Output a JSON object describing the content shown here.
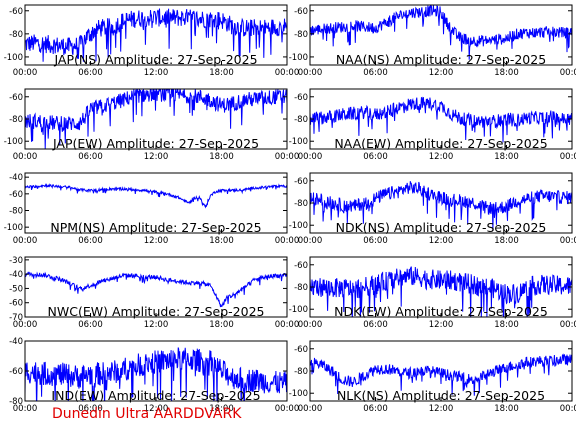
{
  "footer": "Dunedin Ultra AARDDVARK",
  "colors": {
    "trace": "#0000ff",
    "frame": "#000000",
    "footer": "#e00000",
    "background": "#ffffff"
  },
  "chart_data": [
    {
      "type": "line",
      "title": "JAP(NS) Amplitude: 27-Sep-2025",
      "xlabel": "",
      "ylabel": "",
      "xticks": [
        "00:00",
        "06:00",
        "12:00",
        "18:00",
        "00:00"
      ],
      "xlim": [
        0,
        24
      ],
      "ylim": [
        -107,
        -55
      ],
      "yticks": [
        -100,
        -80,
        -60
      ],
      "series": [
        {
          "x": [
            0,
            1,
            2,
            3,
            4,
            5,
            5.5,
            6,
            6.5,
            7,
            8,
            9,
            10,
            11,
            12,
            13,
            14,
            15,
            16,
            17,
            18,
            19,
            20,
            21,
            22,
            23,
            24
          ],
          "values": [
            -89,
            -88,
            -89,
            -90,
            -91,
            -90,
            -84,
            -80,
            -76,
            -75,
            -74,
            -69,
            -67,
            -66,
            -66,
            -66,
            -66,
            -66,
            -67,
            -67,
            -68,
            -73,
            -75,
            -75,
            -75,
            -74,
            -74
          ]
        }
      ],
      "noise": 8
    },
    {
      "type": "line",
      "title": "NAA(NS) Amplitude: 27-Sep-2025",
      "xlabel": "",
      "ylabel": "",
      "xticks": [
        "00:00",
        "06:00",
        "12:00",
        "18:00",
        "00:00"
      ],
      "xlim": [
        0,
        24
      ],
      "ylim": [
        -107,
        -55
      ],
      "yticks": [
        -100,
        -80,
        -60
      ],
      "series": [
        {
          "x": [
            0,
            1,
            2,
            3,
            4,
            5,
            6,
            7,
            8,
            9,
            10,
            11,
            12,
            12.5,
            13,
            13.5,
            14,
            15,
            16,
            17,
            18,
            19,
            20,
            21,
            22,
            23,
            24
          ],
          "values": [
            -77,
            -76,
            -75,
            -74,
            -73,
            -74,
            -75,
            -70,
            -65,
            -62,
            -61,
            -60,
            -61,
            -70,
            -76,
            -82,
            -84,
            -86,
            -86,
            -85,
            -84,
            -80,
            -79,
            -79,
            -78,
            -79,
            -79
          ]
        }
      ],
      "noise": 5
    },
    {
      "type": "line",
      "title": "JAP(EW) Amplitude: 27-Sep-2025",
      "xlabel": "",
      "ylabel": "",
      "xticks": [
        "00:00",
        "06:00",
        "12:00",
        "18:00",
        "00:00"
      ],
      "xlim": [
        0,
        24
      ],
      "ylim": [
        -107,
        -53
      ],
      "yticks": [
        -100,
        -80,
        -60
      ],
      "series": [
        {
          "x": [
            0,
            1,
            2,
            3,
            4,
            5,
            5.5,
            6,
            7,
            8,
            9,
            10,
            11,
            12,
            13,
            14,
            15,
            16,
            17,
            18,
            19,
            20,
            21,
            22,
            23,
            24
          ],
          "values": [
            -82,
            -82,
            -83,
            -84,
            -84,
            -84,
            -78,
            -71,
            -69,
            -66,
            -63,
            -59,
            -58,
            -57,
            -58,
            -58,
            -59,
            -60,
            -63,
            -68,
            -66,
            -63,
            -62,
            -61,
            -60,
            -60
          ]
        }
      ],
      "noise": 7
    },
    {
      "type": "line",
      "title": "NAA(EW) Amplitude: 27-Sep-2025",
      "xlabel": "",
      "ylabel": "",
      "xticks": [
        "00:00",
        "06:00",
        "12:00",
        "18:00",
        "00:00"
      ],
      "xlim": [
        0,
        24
      ],
      "ylim": [
        -107,
        -53
      ],
      "yticks": [
        -100,
        -80,
        -60
      ],
      "series": [
        {
          "x": [
            0,
            1,
            2,
            3,
            4,
            5,
            6,
            7,
            8,
            9,
            10,
            11,
            12,
            13,
            14,
            15,
            16,
            17,
            18,
            19,
            20,
            21,
            22,
            23,
            24
          ],
          "values": [
            -80,
            -79,
            -78,
            -76,
            -75,
            -74,
            -76,
            -74,
            -70,
            -67,
            -66,
            -66,
            -68,
            -76,
            -80,
            -82,
            -82,
            -82,
            -80,
            -81,
            -79,
            -79,
            -78,
            -80,
            -80
          ]
        }
      ],
      "noise": 6
    },
    {
      "type": "line",
      "title": "NPM(NS) Amplitude: 27-Sep-2025",
      "xlabel": "",
      "ylabel": "",
      "xticks": [
        "00:00",
        "06:00",
        "12:00",
        "18:00",
        "00:00"
      ],
      "xlim": [
        0,
        24
      ],
      "ylim": [
        -107,
        -35
      ],
      "yticks": [
        -100,
        -80,
        -60,
        -40
      ],
      "series": [
        {
          "x": [
            0,
            1,
            2,
            3,
            4,
            5,
            6,
            7,
            8,
            9,
            10,
            11,
            12,
            13,
            14,
            15,
            15.5,
            16,
            16.5,
            17,
            17.5,
            18,
            18.5,
            19,
            20,
            21,
            22,
            23,
            24
          ],
          "values": [
            -52,
            -51,
            -50,
            -51,
            -52,
            -55,
            -56,
            -55,
            -54,
            -54,
            -55,
            -56,
            -58,
            -60,
            -64,
            -71,
            -65,
            -64,
            -76,
            -62,
            -57,
            -56,
            -55,
            -56,
            -55,
            -53,
            -52,
            -51,
            -51
          ]
        }
      ],
      "noise": 1.5
    },
    {
      "type": "line",
      "title": "NDK(NS) Amplitude: 27-Sep-2025",
      "xlabel": "",
      "ylabel": "",
      "xticks": [
        "00:00",
        "06:00",
        "12:00",
        "18:00",
        "00:00"
      ],
      "xlim": [
        0,
        24
      ],
      "ylim": [
        -107,
        -53
      ],
      "yticks": [
        -100,
        -80,
        -60
      ],
      "series": [
        {
          "x": [
            0,
            1,
            2,
            3,
            4,
            5,
            6,
            7,
            8,
            9,
            10,
            11,
            12,
            13,
            14,
            15,
            16,
            17,
            18,
            19,
            20,
            21,
            22,
            23,
            24
          ],
          "values": [
            -76,
            -77,
            -80,
            -82,
            -83,
            -80,
            -76,
            -72,
            -70,
            -66,
            -67,
            -72,
            -75,
            -77,
            -78,
            -80,
            -84,
            -85,
            -83,
            -78,
            -76,
            -74,
            -74,
            -75,
            -75
          ]
        }
      ],
      "noise": 6
    },
    {
      "type": "line",
      "title": "NWC(EW) Amplitude: 27-Sep-2025",
      "xlabel": "",
      "ylabel": "",
      "xticks": [
        "00:00",
        "06:00",
        "12:00",
        "18:00",
        "00:00"
      ],
      "xlim": [
        0,
        24
      ],
      "ylim": [
        -70,
        -28
      ],
      "yticks": [
        -70,
        -60,
        -50,
        -40,
        -30
      ],
      "series": [
        {
          "x": [
            0,
            1,
            2,
            3,
            4,
            5,
            6,
            7,
            8,
            9,
            10,
            11,
            12,
            13,
            14,
            15,
            16,
            17,
            17.5,
            18,
            18.5,
            19,
            20,
            21,
            22,
            23,
            24
          ],
          "values": [
            -40,
            -40,
            -41,
            -43,
            -46,
            -50,
            -48,
            -45,
            -43,
            -41,
            -41,
            -42,
            -42,
            -44,
            -45,
            -46,
            -46,
            -48,
            -55,
            -63,
            -56,
            -55,
            -50,
            -44,
            -42,
            -41,
            -41
          ]
        }
      ],
      "noise": 1.5
    },
    {
      "type": "line",
      "title": "NDK(EW) Amplitude: 27-Sep-2025",
      "xlabel": "",
      "ylabel": "",
      "xticks": [
        "00:00",
        "06:00",
        "12:00",
        "18:00",
        "00:00"
      ],
      "xlim": [
        0,
        24
      ],
      "ylim": [
        -107,
        -53
      ],
      "yticks": [
        -100,
        -80,
        -60
      ],
      "series": [
        {
          "x": [
            0,
            1,
            2,
            3,
            4,
            5,
            6,
            7,
            8,
            9,
            10,
            11,
            12,
            13,
            14,
            15,
            16,
            17,
            18,
            19,
            20,
            21,
            22,
            23,
            24
          ],
          "values": [
            -80,
            -80,
            -81,
            -81,
            -82,
            -80,
            -78,
            -75,
            -72,
            -70,
            -71,
            -73,
            -74,
            -74,
            -76,
            -78,
            -80,
            -82,
            -86,
            -86,
            -80,
            -78,
            -78,
            -79,
            -79
          ]
        }
      ],
      "noise": 9
    },
    {
      "type": "line",
      "title": "IND(EW) Amplitude: 27-Sep-2025",
      "xlabel": "",
      "ylabel": "",
      "xticks": [
        "00:00",
        "06:00",
        "12:00",
        "18:00",
        "00:00"
      ],
      "xlim": [
        0,
        24
      ],
      "ylim": [
        -80,
        -40
      ],
      "yticks": [
        -80,
        -60,
        -40
      ],
      "series": [
        {
          "x": [
            0,
            1,
            2,
            3,
            4,
            5,
            6,
            7,
            8,
            9,
            10,
            11,
            12,
            13,
            14,
            15,
            16,
            17,
            18,
            19,
            20,
            21,
            22,
            23,
            24
          ],
          "values": [
            -60,
            -61,
            -62,
            -62,
            -63,
            -64,
            -62,
            -62,
            -61,
            -59,
            -57,
            -55,
            -54,
            -53,
            -52,
            -52,
            -53,
            -54,
            -60,
            -64,
            -66,
            -66,
            -67,
            -68,
            -68
          ]
        }
      ],
      "noise": 8
    },
    {
      "type": "line",
      "title": "NLK(NS) Amplitude: 27-Sep-2025",
      "xlabel": "",
      "ylabel": "",
      "xticks": [
        "00:00",
        "06:00",
        "12:00",
        "18:00",
        "00:00"
      ],
      "xlim": [
        0,
        24
      ],
      "ylim": [
        -107,
        -53
      ],
      "yticks": [
        -100,
        -80,
        -60
      ],
      "series": [
        {
          "x": [
            0,
            1,
            2,
            3,
            4,
            5,
            6,
            7,
            8,
            9,
            10,
            11,
            12,
            13,
            14,
            15,
            16,
            17,
            18,
            19,
            20,
            21,
            22,
            23,
            24
          ],
          "values": [
            -72,
            -74,
            -80,
            -88,
            -90,
            -84,
            -78,
            -78,
            -80,
            -82,
            -80,
            -80,
            -82,
            -84,
            -86,
            -88,
            -84,
            -80,
            -77,
            -74,
            -72,
            -71,
            -71,
            -70,
            -70
          ]
        }
      ],
      "noise": 5
    }
  ]
}
